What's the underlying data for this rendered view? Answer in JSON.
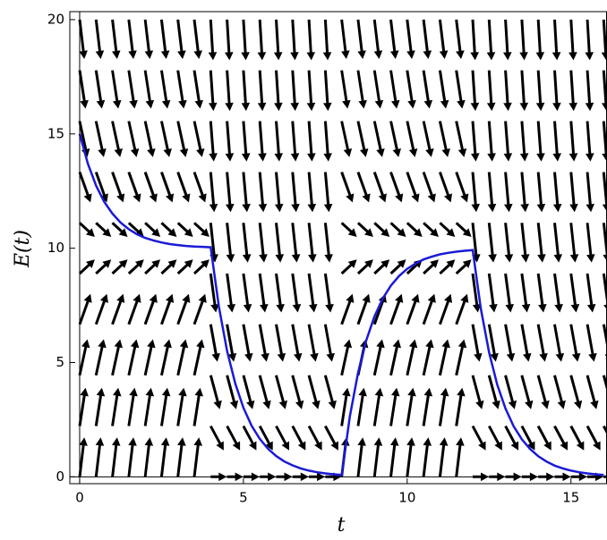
{
  "chart_data": {
    "type": "slope_field",
    "xlabel": "t",
    "ylabel": "E(t)",
    "xlim": [
      -0.3,
      16.1
    ],
    "ylim": [
      -0.3,
      20.35
    ],
    "xticks": [
      0,
      5,
      10,
      15
    ],
    "yticks": [
      0,
      5,
      10,
      15,
      20
    ],
    "field": {
      "color": "#000000",
      "t": [
        0,
        0.5,
        1,
        1.5,
        2,
        2.5,
        3,
        3.5,
        4,
        4.5,
        5,
        5.5,
        6,
        6.5,
        7,
        7.5,
        8,
        8.5,
        9,
        9.5,
        10,
        10.5,
        11,
        11.5,
        12,
        12.5,
        13,
        13.5,
        14,
        14.5,
        15,
        15.5,
        16
      ],
      "E": [
        0,
        2.22,
        4.44,
        6.67,
        8.89,
        11.11,
        13.33,
        15.56,
        17.78,
        20
      ],
      "slopes": [
        [
          12,
          12,
          12,
          12,
          12,
          12,
          12,
          12,
          0,
          0,
          0,
          0,
          0,
          0,
          0,
          0,
          12,
          12,
          12,
          12,
          12,
          12,
          12,
          12,
          0,
          0,
          0,
          0,
          0,
          0,
          0,
          0,
          0
        ],
        [
          9.33,
          9.33,
          9.33,
          9.33,
          9.33,
          9.33,
          9.33,
          9.33,
          -2.67,
          -2.67,
          -2.67,
          -2.67,
          -2.67,
          -2.67,
          -2.67,
          -2.67,
          9.33,
          9.33,
          9.33,
          9.33,
          9.33,
          9.33,
          9.33,
          9.33,
          -2.67,
          -2.67,
          -2.67,
          -2.67,
          -2.67,
          -2.67,
          -2.67,
          -2.67,
          -2.67
        ],
        [
          6.67,
          6.67,
          6.67,
          6.67,
          6.67,
          6.67,
          6.67,
          6.67,
          -5.33,
          -5.33,
          -5.33,
          -5.33,
          -5.33,
          -5.33,
          -5.33,
          -5.33,
          6.67,
          6.67,
          6.67,
          6.67,
          6.67,
          6.67,
          6.67,
          6.67,
          -5.33,
          -5.33,
          -5.33,
          -5.33,
          -5.33,
          -5.33,
          -5.33,
          -5.33,
          -5.33
        ],
        [
          4,
          4,
          4,
          4,
          4,
          4,
          4,
          4,
          -8,
          -8,
          -8,
          -8,
          -8,
          -8,
          -8,
          -8,
          4,
          4,
          4,
          4,
          4,
          4,
          4,
          4,
          -8,
          -8,
          -8,
          -8,
          -8,
          -8,
          -8,
          -8,
          -8
        ],
        [
          1.33,
          1.33,
          1.33,
          1.33,
          1.33,
          1.33,
          1.33,
          1.33,
          -10.67,
          -10.67,
          -10.67,
          -10.67,
          -10.67,
          -10.67,
          -10.67,
          -10.67,
          1.33,
          1.33,
          1.33,
          1.33,
          1.33,
          1.33,
          1.33,
          1.33,
          -10.67,
          -10.67,
          -10.67,
          -10.67,
          -10.67,
          -10.67,
          -10.67,
          -10.67,
          -10.67
        ],
        [
          -1.33,
          -1.33,
          -1.33,
          -1.33,
          -1.33,
          -1.33,
          -1.33,
          -1.33,
          -13.33,
          -13.33,
          -13.33,
          -13.33,
          -13.33,
          -13.33,
          -13.33,
          -13.33,
          -1.33,
          -1.33,
          -1.33,
          -1.33,
          -1.33,
          -1.33,
          -1.33,
          -1.33,
          -13.33,
          -13.33,
          -13.33,
          -13.33,
          -13.33,
          -13.33,
          -13.33,
          -13.33,
          -13.33
        ],
        [
          -4,
          -4,
          -4,
          -4,
          -4,
          -4,
          -4,
          -4,
          -16,
          -16,
          -16,
          -16,
          -16,
          -16,
          -16,
          -16,
          -4,
          -4,
          -4,
          -4,
          -4,
          -4,
          -4,
          -4,
          -16,
          -16,
          -16,
          -16,
          -16,
          -16,
          -16,
          -16,
          -16
        ],
        [
          -6.67,
          -6.67,
          -6.67,
          -6.67,
          -6.67,
          -6.67,
          -6.67,
          -6.67,
          -18.67,
          -18.67,
          -18.67,
          -18.67,
          -18.67,
          -18.67,
          -18.67,
          -18.67,
          -6.67,
          -6.67,
          -6.67,
          -6.67,
          -6.67,
          -6.67,
          -6.67,
          -6.67,
          -18.67,
          -18.67,
          -18.67,
          -18.67,
          -18.67,
          -18.67,
          -18.67,
          -18.67,
          -18.67
        ],
        [
          -9.33,
          -9.33,
          -9.33,
          -9.33,
          -9.33,
          -9.33,
          -9.33,
          -9.33,
          -21.33,
          -21.33,
          -21.33,
          -21.33,
          -21.33,
          -21.33,
          -21.33,
          -21.33,
          -9.33,
          -9.33,
          -9.33,
          -9.33,
          -9.33,
          -9.33,
          -9.33,
          -9.33,
          -21.33,
          -21.33,
          -21.33,
          -21.33,
          -21.33,
          -21.33,
          -21.33,
          -21.33,
          -21.33
        ],
        [
          -12,
          -12,
          -12,
          -12,
          -12,
          -12,
          -12,
          -12,
          -24,
          -24,
          -24,
          -24,
          -24,
          -24,
          -24,
          -24,
          -12,
          -12,
          -12,
          -12,
          -12,
          -12,
          -12,
          -12,
          -24,
          -24,
          -24,
          -24,
          -24,
          -24,
          -24,
          -24,
          -24
        ]
      ]
    },
    "x": [
      0,
      0.25,
      0.5,
      0.75,
      1,
      1.25,
      1.5,
      1.75,
      2,
      2.25,
      2.5,
      2.75,
      3,
      3.25,
      3.5,
      3.75,
      4,
      4.25,
      4.5,
      4.75,
      5,
      5.25,
      5.5,
      5.75,
      6,
      6.25,
      6.5,
      6.75,
      7,
      7.25,
      7.5,
      7.75,
      8,
      8.25,
      8.5,
      8.75,
      9,
      9.25,
      9.5,
      9.75,
      10,
      10.25,
      10.5,
      10.75,
      11,
      11.25,
      11.5,
      11.75,
      12,
      12.25,
      12.5,
      12.75,
      13,
      13.25,
      13.5,
      13.75,
      14,
      14.25,
      14.5,
      14.75,
      15,
      15.25,
      15.5,
      15.75,
      16
    ],
    "series": [
      {
        "color": "#1a1ad6",
        "values": [
          15,
          13.7,
          12.74,
          12.03,
          11.51,
          11.12,
          10.83,
          10.61,
          10.45,
          10.34,
          10.25,
          10.18,
          10.14,
          10.1,
          10.07,
          10.06,
          10.04,
          7.44,
          5.51,
          4.08,
          3.02,
          2.24,
          1.66,
          1.23,
          0.91,
          0.67,
          0.5,
          0.37,
          0.27,
          0.2,
          0.15,
          0.11,
          0.08,
          2.65,
          4.56,
          5.97,
          7.01,
          7.79,
          8.36,
          8.78,
          9.1,
          9.33,
          9.51,
          9.63,
          9.73,
          9.8,
          9.85,
          9.89,
          9.92,
          7.35,
          5.44,
          4.03,
          2.99,
          2.21,
          1.64,
          1.22,
          0.9,
          0.67,
          0.49,
          0.37,
          0.27,
          0.2,
          0.15,
          0.11,
          0.08
        ]
      }
    ]
  }
}
